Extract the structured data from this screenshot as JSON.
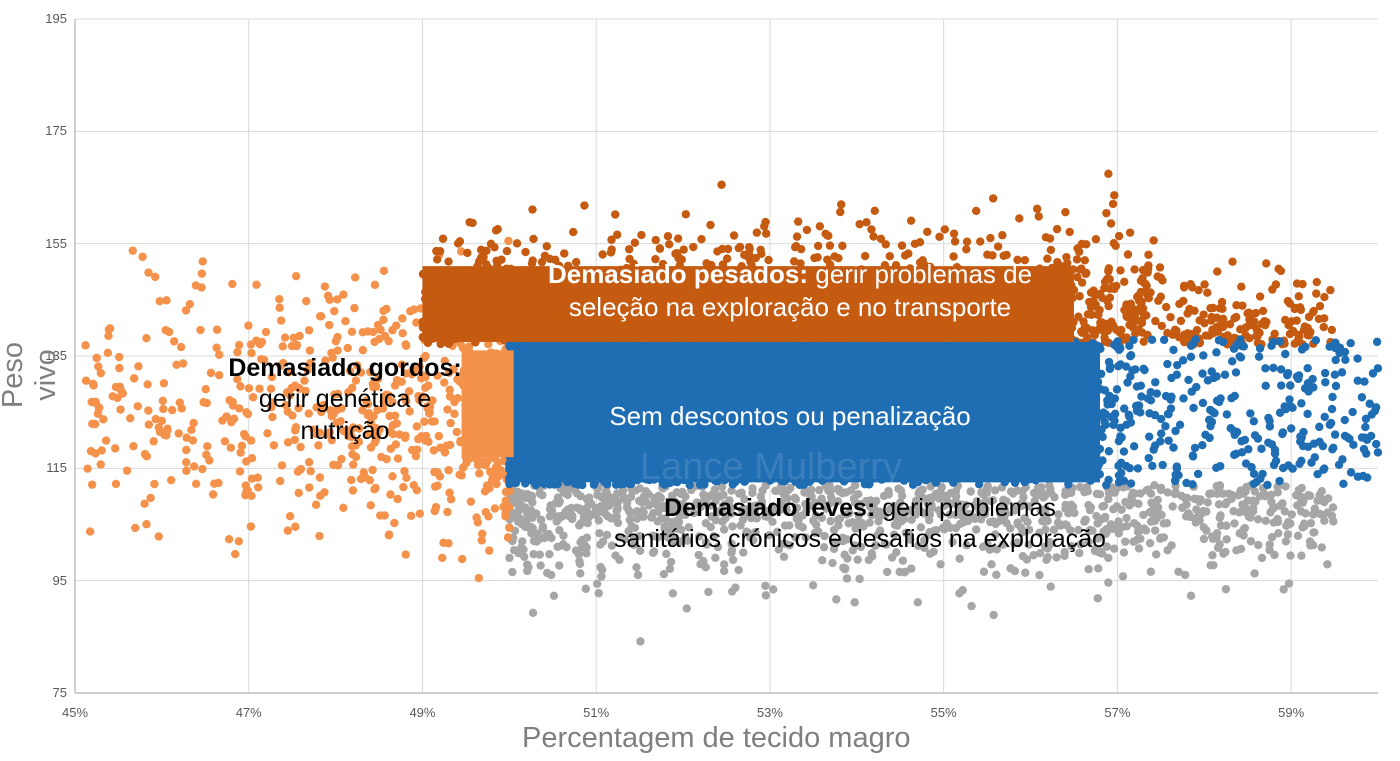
{
  "chart_data": {
    "type": "scatter",
    "title": "",
    "xlabel": "Percentagem de tecido magro",
    "ylabel": "Peso vivo",
    "xlim": [
      0.45,
      0.6
    ],
    "ylim": [
      75,
      195
    ],
    "x_ticks": [
      "45%",
      "47%",
      "49%",
      "51%",
      "53%",
      "55%",
      "57%",
      "59%"
    ],
    "y_ticks": [
      "75",
      "95",
      "115",
      "135",
      "155",
      "175",
      "195"
    ],
    "grid": true,
    "legend": "none",
    "series": [
      {
        "name": "Demasiado pesados",
        "color": "#c55a11",
        "region": {
          "x": [
            0.49,
            0.595
          ],
          "y": [
            137,
            180
          ]
        },
        "count": 1500,
        "description": "Live weight above ~137, lean 49%–59.5%"
      },
      {
        "name": "Demasiado gordos",
        "color": "#f4914a",
        "region": {
          "x": [
            0.451,
            0.5
          ],
          "y": [
            88,
            170
          ]
        },
        "count": 700,
        "description": "Lean % below 50%, weight ~88–170"
      },
      {
        "name": "Sem descontos ou penalização",
        "color": "#1f6db3",
        "region": {
          "x": [
            0.5,
            0.6
          ],
          "y": [
            112,
            138
          ]
        },
        "count": 2600,
        "description": "Lean ≥50%, weight ~112–138 (dense block to ~57%, sparse to 60%)"
      },
      {
        "name": "Demasiado leves",
        "color": "#a6a6a6",
        "region": {
          "x": [
            0.5,
            0.595
          ],
          "y": [
            80,
            112
          ]
        },
        "count": 1100,
        "description": "Lean ≥50%, weight below ~112"
      }
    ],
    "annotations": [
      {
        "bold": "Demasiado pesados:",
        "text": "gerir problemas de seleção na exploração e no transporte"
      },
      {
        "bold": "Demasiado gordos:",
        "text": "gerir genética e nutrição"
      },
      {
        "bold": "",
        "text": "Sem descontos ou penalização"
      },
      {
        "bold": "Demasiado leves:",
        "text": "gerir problemas sanitários crónicos e desafios na exploração"
      }
    ]
  },
  "axes": {
    "x_title": "Percentagem de tecido magro",
    "y_title": "Peso vivo"
  },
  "annotations": {
    "heavy_bold": "Demasiado pesados:",
    "heavy_line1": " gerir problemas de",
    "heavy_line2": "seleção na exploração e no transporte",
    "fat_bold": "Demasiado gordos:",
    "fat_line1": "gerir genética e",
    "fat_line2": "nutrição",
    "ok_text": "Sem descontos ou penalização",
    "light_bold": "Demasiado leves:",
    "light_line1": " gerir problemas",
    "light_line2": "sanitários crónicos e desafios na exploração"
  },
  "watermark": "Lance Mulberry",
  "colors": {
    "heavy": "#c55a11",
    "fat": "#f4914a",
    "ok": "#1f6db3",
    "light": "#a6a6a6",
    "grid": "#d9d9d9",
    "axis": "#bfbfbf",
    "tick_text": "#595959",
    "title_text": "#7f7f7f"
  }
}
